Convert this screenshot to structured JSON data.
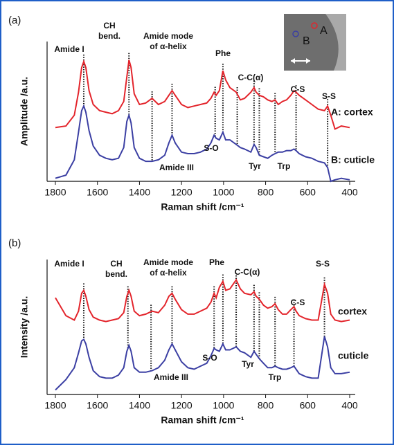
{
  "chart_data": [
    {
      "type": "line",
      "panel": "(a)",
      "x_label": "Raman shift /cm⁻¹",
      "y_label": "Amplitude /a.u.",
      "xlim": [
        1800,
        400
      ],
      "xticks": [
        1800,
        1600,
        1400,
        1200,
        1000,
        800,
        600,
        400
      ],
      "ylim": [
        0,
        10
      ],
      "x": [
        1800,
        1750,
        1710,
        1690,
        1675,
        1665,
        1655,
        1640,
        1620,
        1590,
        1560,
        1530,
        1500,
        1475,
        1460,
        1450,
        1440,
        1425,
        1400,
        1370,
        1340,
        1310,
        1280,
        1260,
        1245,
        1230,
        1200,
        1170,
        1140,
        1110,
        1080,
        1060,
        1045,
        1035,
        1020,
        1003,
        990,
        970,
        940,
        920,
        900,
        870,
        855,
        845,
        830,
        810,
        790,
        770,
        755,
        740,
        720,
        700,
        680,
        665,
        655,
        640,
        610,
        580,
        550,
        520,
        505,
        490,
        470,
        440,
        400
      ],
      "series": [
        {
          "name": "A: cortex",
          "color": "#e3242b",
          "values": [
            3.5,
            3.6,
            4.3,
            5.8,
            7.4,
            7.8,
            7.4,
            5.9,
            5.0,
            4.6,
            4.5,
            4.4,
            4.6,
            5.2,
            6.8,
            7.9,
            7.4,
            5.7,
            5.0,
            5.1,
            5.4,
            5.0,
            5.2,
            5.6,
            5.9,
            5.6,
            5.0,
            4.8,
            4.9,
            5.0,
            5.1,
            5.4,
            5.8,
            5.6,
            5.9,
            7.2,
            6.6,
            6.1,
            5.8,
            5.3,
            5.4,
            5.8,
            6.1,
            5.8,
            5.6,
            5.5,
            5.3,
            5.2,
            5.3,
            5.0,
            5.2,
            5.3,
            5.6,
            5.9,
            5.8,
            5.6,
            5.3,
            5.0,
            4.7,
            4.6,
            4.9,
            4.3,
            3.4,
            3.6,
            3.5
          ]
        },
        {
          "name": "B: cuticle",
          "color": "#3b3fa3",
          "values": [
            0.2,
            0.4,
            1.4,
            3.2,
            4.6,
            4.9,
            4.5,
            3.3,
            2.3,
            1.7,
            1.5,
            1.4,
            1.5,
            2.2,
            3.9,
            4.3,
            3.8,
            2.2,
            1.5,
            1.3,
            1.3,
            1.4,
            1.7,
            2.5,
            3.0,
            2.5,
            1.9,
            1.8,
            1.8,
            1.9,
            2.1,
            2.5,
            3.0,
            2.8,
            2.7,
            3.2,
            2.7,
            2.7,
            2.4,
            2.2,
            2.1,
            1.9,
            2.4,
            2.2,
            1.7,
            1.6,
            1.5,
            1.7,
            1.8,
            1.9,
            1.9,
            2.0,
            2.0,
            2.1,
            2.0,
            1.8,
            1.6,
            1.5,
            1.3,
            1.2,
            0.9,
            0.0,
            0.1,
            0.2,
            0.1
          ]
        }
      ],
      "annotations": [
        [
          "Amide I"
        ],
        [
          "CH",
          "bend."
        ],
        [
          "Amide mode",
          "of α-helix"
        ],
        [
          "Phe"
        ],
        [
          "C-C(α)"
        ],
        [
          "C-S"
        ],
        [
          "S-S"
        ],
        [
          "S-O"
        ],
        [
          "Amide III"
        ],
        [
          "Tyr"
        ],
        [
          "Trp"
        ]
      ],
      "peak_lines": [
        1665,
        1450,
        1340,
        1245,
        1040,
        1003,
        935,
        855,
        830,
        755,
        655,
        505
      ],
      "inset_labels": [
        "A",
        "B"
      ]
    },
    {
      "type": "line",
      "panel": "(b)",
      "x_label": "Raman shift /cm⁻¹",
      "y_label": "Intensity /a.u.",
      "xlim": [
        1800,
        400
      ],
      "xticks": [
        1800,
        1600,
        1400,
        1200,
        1000,
        800,
        600,
        400
      ],
      "ylim": [
        0,
        10
      ],
      "x": [
        1800,
        1750,
        1710,
        1690,
        1675,
        1665,
        1655,
        1640,
        1620,
        1590,
        1560,
        1530,
        1500,
        1475,
        1460,
        1450,
        1440,
        1425,
        1400,
        1370,
        1340,
        1310,
        1280,
        1260,
        1245,
        1230,
        1200,
        1170,
        1140,
        1110,
        1080,
        1060,
        1045,
        1035,
        1020,
        1003,
        990,
        970,
        940,
        920,
        900,
        870,
        855,
        845,
        830,
        810,
        790,
        770,
        755,
        740,
        720,
        700,
        680,
        665,
        655,
        640,
        610,
        580,
        550,
        520,
        505,
        490,
        470,
        440,
        400
      ],
      "series": [
        {
          "name": "cortex",
          "color": "#e3242b",
          "values": [
            6.5,
            5.3,
            5.0,
            5.6,
            6.8,
            7.0,
            6.6,
            5.7,
            5.2,
            5.0,
            4.9,
            5.0,
            5.1,
            5.5,
            6.6,
            7.0,
            6.6,
            5.6,
            5.3,
            5.4,
            5.6,
            5.5,
            6.0,
            6.6,
            6.8,
            6.4,
            5.7,
            5.4,
            5.4,
            5.6,
            5.8,
            6.2,
            6.8,
            6.5,
            7.2,
            7.6,
            7.0,
            7.1,
            7.7,
            7.1,
            6.8,
            6.7,
            6.9,
            6.6,
            6.4,
            6.0,
            5.8,
            5.9,
            6.1,
            5.7,
            5.4,
            5.4,
            5.7,
            5.9,
            5.6,
            5.3,
            5.1,
            5.0,
            5.0,
            7.4,
            6.8,
            5.4,
            5.0,
            4.9,
            5.0
          ]
        },
        {
          "name": "cuticle",
          "color": "#3b3fa3",
          "values": [
            0.3,
            1.0,
            1.8,
            2.8,
            3.6,
            3.7,
            3.4,
            2.5,
            1.6,
            1.2,
            1.1,
            1.1,
            1.3,
            1.8,
            2.9,
            3.3,
            2.9,
            1.8,
            1.5,
            1.5,
            1.6,
            1.8,
            2.3,
            3.0,
            3.4,
            3.0,
            2.2,
            1.8,
            1.7,
            1.9,
            2.1,
            2.6,
            3.1,
            3.0,
            2.9,
            3.4,
            3.0,
            3.0,
            3.2,
            2.9,
            2.8,
            2.5,
            2.9,
            2.7,
            2.4,
            2.1,
            1.8,
            1.8,
            1.9,
            1.8,
            1.7,
            1.7,
            1.8,
            1.9,
            1.7,
            1.4,
            1.2,
            1.1,
            1.1,
            3.9,
            3.2,
            1.8,
            1.4,
            1.4,
            1.5
          ]
        }
      ],
      "annotations": [
        [
          "Amide I"
        ],
        [
          "CH",
          "bend."
        ],
        [
          "Amide mode",
          "of α-helix"
        ],
        [
          "Phe"
        ],
        [
          "C-C(α)"
        ],
        [
          "S-S"
        ],
        [
          "C-S"
        ],
        [
          "S-O"
        ],
        [
          "Amide III"
        ],
        [
          "Tyr"
        ],
        [
          "Trp"
        ]
      ],
      "peak_lines": [
        1665,
        1455,
        1345,
        1245,
        1045,
        1003,
        940,
        855,
        830,
        755,
        665,
        520
      ]
    }
  ]
}
